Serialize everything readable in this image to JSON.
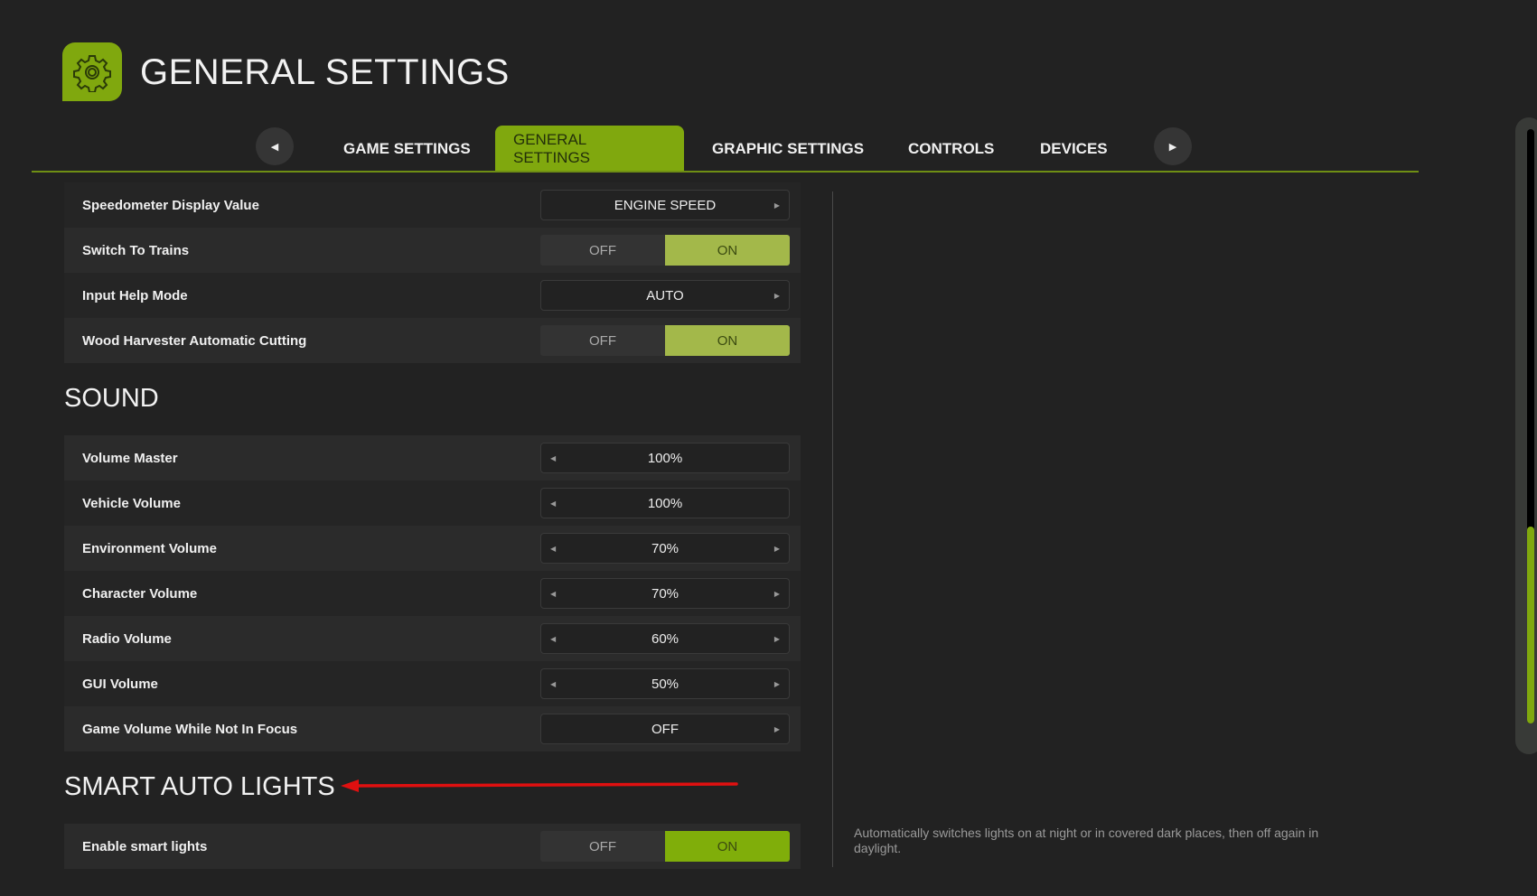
{
  "header": {
    "title": "GENERAL SETTINGS",
    "icon": "gear-icon"
  },
  "tabs": [
    {
      "label": "GAME SETTINGS"
    },
    {
      "label": "GENERAL SETTINGS",
      "active": true
    },
    {
      "label": "GRAPHIC SETTINGS"
    },
    {
      "label": "CONTROLS"
    },
    {
      "label": "DEVICES"
    }
  ],
  "general": [
    {
      "label": "Speedometer Display Value",
      "type": "select",
      "value": "ENGINE SPEED"
    },
    {
      "label": "Switch To Trains",
      "type": "toggle",
      "off": "OFF",
      "on": "ON",
      "value": "ON"
    },
    {
      "label": "Input Help Mode",
      "type": "select",
      "value": "AUTO"
    },
    {
      "label": "Wood Harvester Automatic Cutting",
      "type": "toggle",
      "off": "OFF",
      "on": "ON",
      "value": "ON"
    }
  ],
  "sound": {
    "heading": "SOUND",
    "rows": [
      {
        "label": "Volume Master",
        "value": "100%"
      },
      {
        "label": "Vehicle Volume",
        "value": "100%"
      },
      {
        "label": "Environment Volume",
        "value": "70%"
      },
      {
        "label": "Character Volume",
        "value": "70%"
      },
      {
        "label": "Radio Volume",
        "value": "60%"
      },
      {
        "label": "GUI Volume",
        "value": "50%"
      },
      {
        "label": "Game Volume While Not In Focus",
        "value": "OFF"
      }
    ]
  },
  "smart": {
    "heading": "SMART AUTO LIGHTS",
    "rows": [
      {
        "label": "Enable smart lights",
        "off": "OFF",
        "on": "ON",
        "value": "ON"
      }
    ],
    "description": "Automatically switches lights on at night or in covered dark places, then off again in daylight."
  },
  "colors": {
    "accent": "#80a80e",
    "annotation_arrow": "#e01010"
  }
}
